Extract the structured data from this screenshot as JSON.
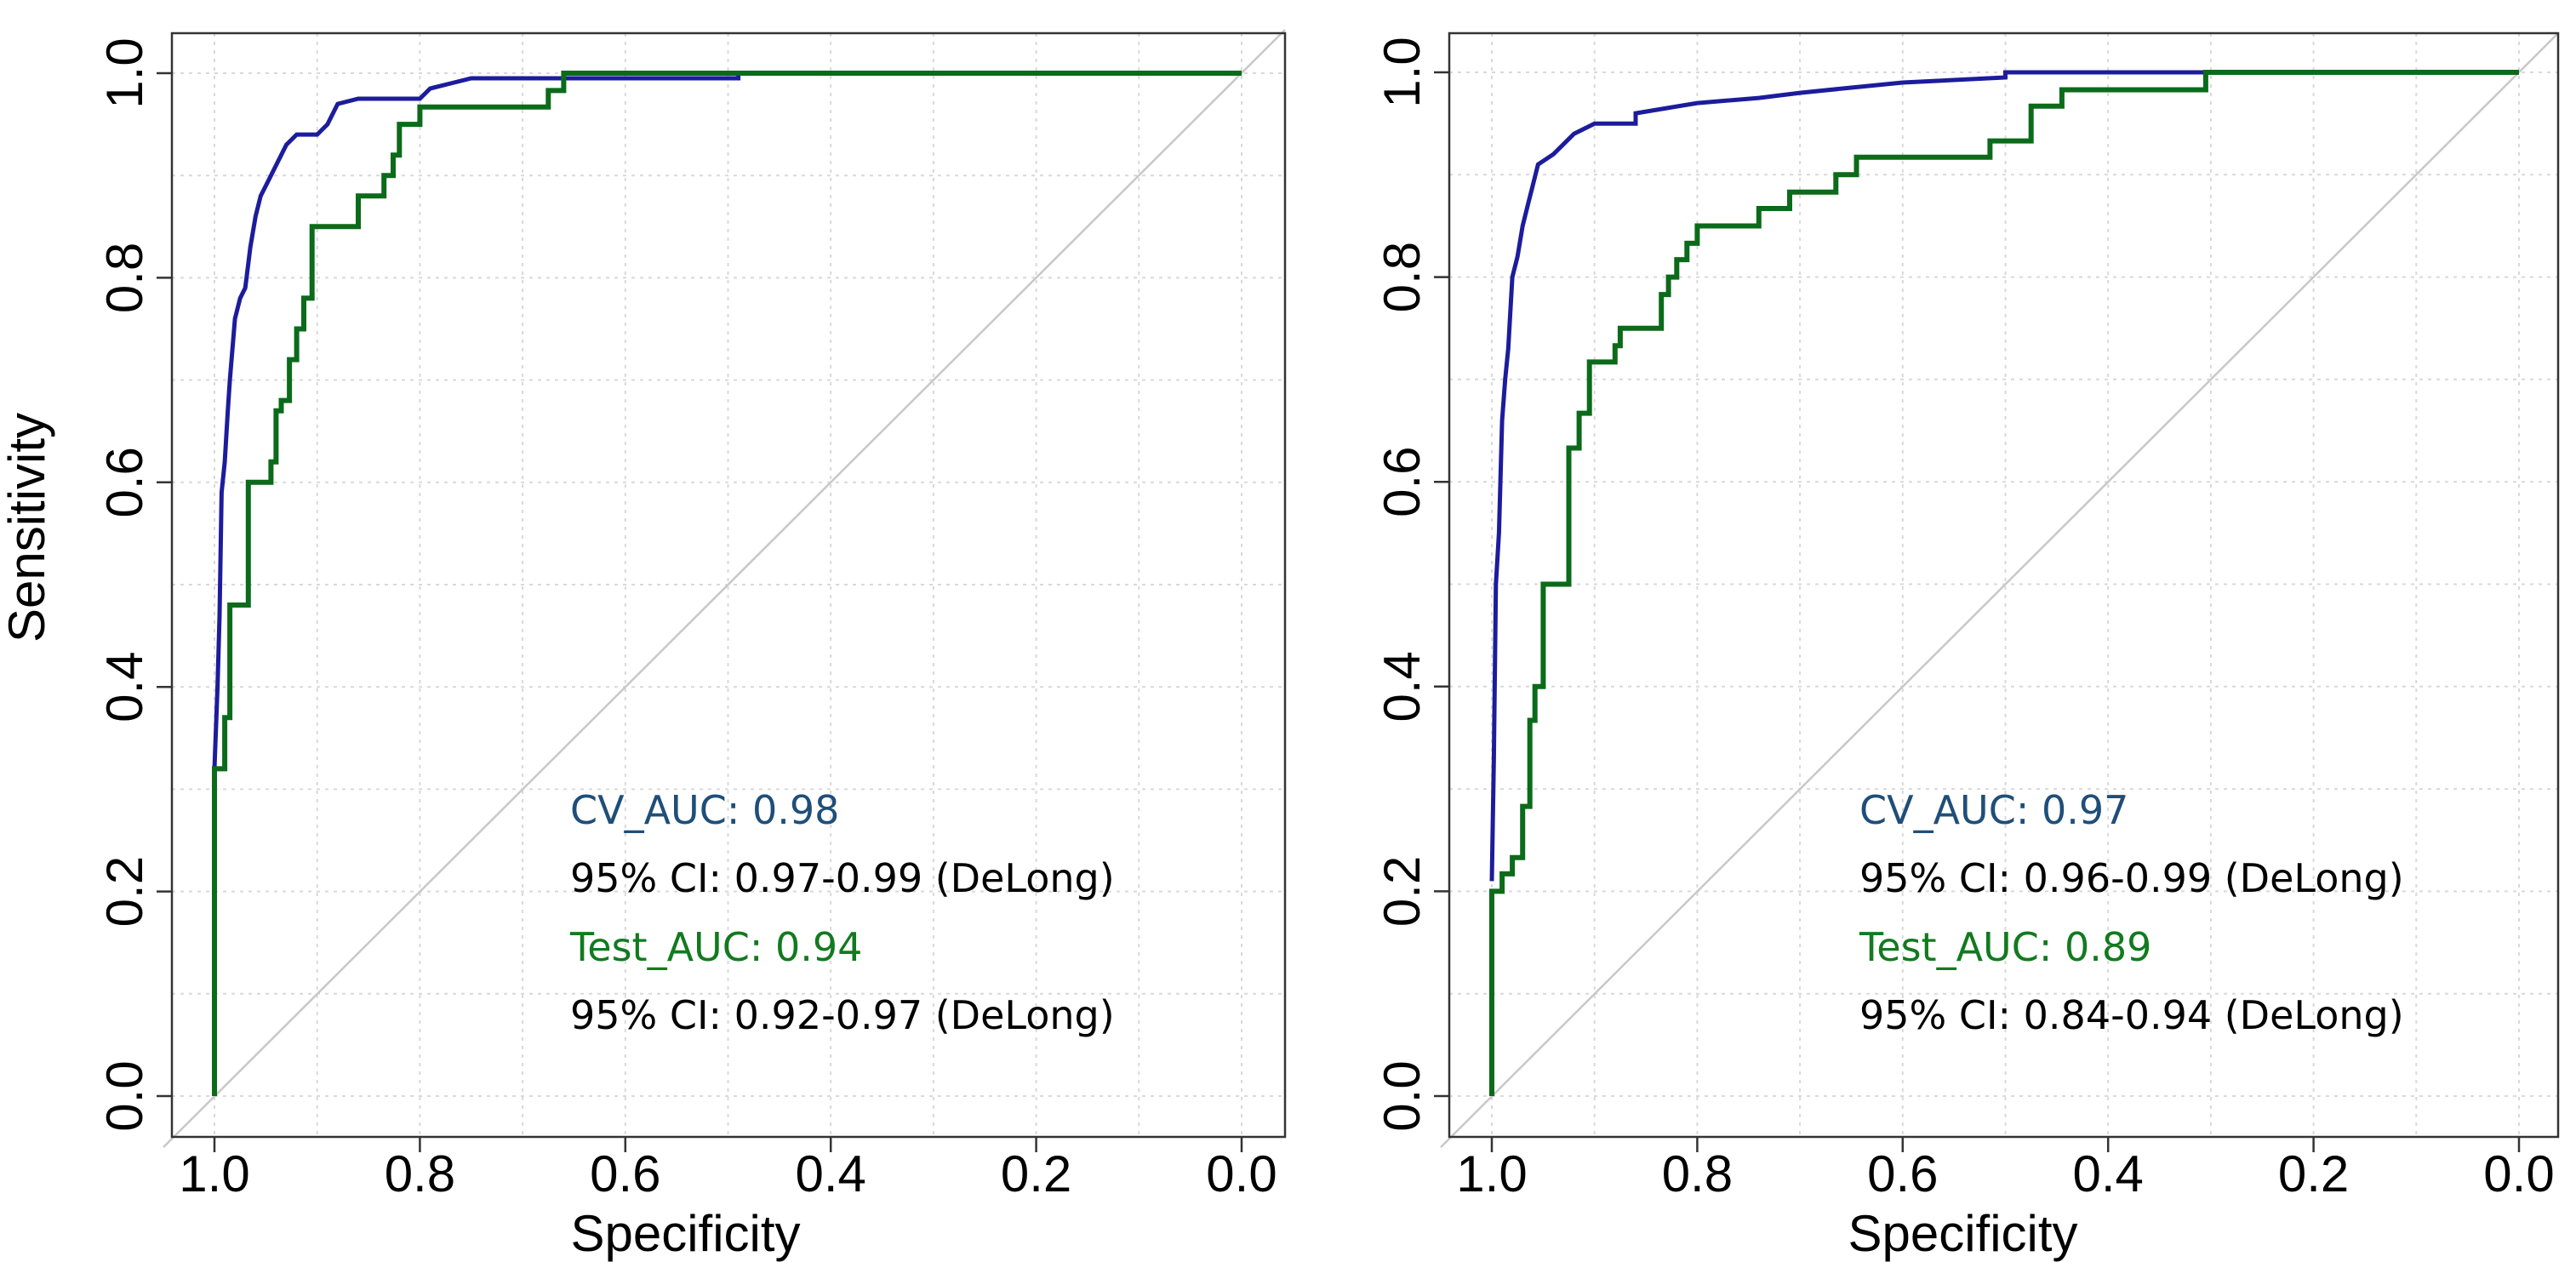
{
  "chart_data": [
    {
      "type": "line",
      "xlabel": "Specificity",
      "ylabel": "Sensitivity",
      "xlim": [
        1.0,
        0.0
      ],
      "ylim": [
        0.0,
        1.0
      ],
      "xticks": [
        "1.0",
        "0.8",
        "0.6",
        "0.4",
        "0.2",
        "0.0"
      ],
      "yticks": [
        "0.0",
        "0.2",
        "0.4",
        "0.6",
        "0.8",
        "1.0"
      ],
      "grid": true,
      "reference_line": "diagonal",
      "legend": [
        {
          "text": "CV_AUC: 0.98",
          "color": "#1f4e79"
        },
        {
          "text": "95% CI: 0.97-0.99 (DeLong)",
          "color": "#000000"
        },
        {
          "text": "Test_AUC: 0.94",
          "color": "#127a1f"
        },
        {
          "text": "95% CI: 0.92-0.97 (DeLong)",
          "color": "#000000"
        }
      ],
      "series": [
        {
          "name": "CV",
          "color": "#1c1c9c",
          "points": [
            [
              1,
              0.12
            ],
            [
              1,
              0.32
            ],
            [
              0.997,
              0.4
            ],
            [
              0.995,
              0.47
            ],
            [
              0.993,
              0.59
            ],
            [
              0.99,
              0.62
            ],
            [
              0.987,
              0.67
            ],
            [
              0.985,
              0.7
            ],
            [
              0.98,
              0.76
            ],
            [
              0.975,
              0.78
            ],
            [
              0.97,
              0.79
            ],
            [
              0.965,
              0.83
            ],
            [
              0.96,
              0.86
            ],
            [
              0.955,
              0.88
            ],
            [
              0.95,
              0.89
            ],
            [
              0.94,
              0.91
            ],
            [
              0.93,
              0.93
            ],
            [
              0.92,
              0.94
            ],
            [
              0.9,
              0.94
            ],
            [
              0.89,
              0.95
            ],
            [
              0.88,
              0.97
            ],
            [
              0.86,
              0.975
            ],
            [
              0.8,
              0.975
            ],
            [
              0.79,
              0.985
            ],
            [
              0.77,
              0.99
            ],
            [
              0.75,
              0.995
            ],
            [
              0.49,
              0.995
            ],
            [
              0.49,
              1.0
            ],
            [
              0,
              1.0
            ]
          ]
        },
        {
          "name": "Test",
          "color": "#0b6b1a",
          "points": [
            [
              1,
              0
            ],
            [
              1,
              0.32
            ],
            [
              0.99,
              0.32
            ],
            [
              0.99,
              0.37
            ],
            [
              0.985,
              0.37
            ],
            [
              0.985,
              0.48
            ],
            [
              0.967,
              0.48
            ],
            [
              0.967,
              0.6
            ],
            [
              0.945,
              0.6
            ],
            [
              0.945,
              0.62
            ],
            [
              0.94,
              0.62
            ],
            [
              0.94,
              0.67
            ],
            [
              0.935,
              0.67
            ],
            [
              0.935,
              0.68
            ],
            [
              0.927,
              0.68
            ],
            [
              0.927,
              0.72
            ],
            [
              0.92,
              0.72
            ],
            [
              0.92,
              0.75
            ],
            [
              0.913,
              0.75
            ],
            [
              0.913,
              0.78
            ],
            [
              0.905,
              0.78
            ],
            [
              0.905,
              0.85
            ],
            [
              0.86,
              0.85
            ],
            [
              0.86,
              0.88
            ],
            [
              0.835,
              0.88
            ],
            [
              0.835,
              0.9
            ],
            [
              0.826,
              0.9
            ],
            [
              0.826,
              0.92
            ],
            [
              0.82,
              0.92
            ],
            [
              0.82,
              0.95
            ],
            [
              0.8,
              0.95
            ],
            [
              0.8,
              0.967
            ],
            [
              0.675,
              0.967
            ],
            [
              0.675,
              0.983
            ],
            [
              0.66,
              0.983
            ],
            [
              0.66,
              1
            ],
            [
              0,
              1
            ]
          ]
        }
      ]
    },
    {
      "type": "line",
      "xlabel": "Specificity",
      "ylabel": "",
      "xlim": [
        1.0,
        0.0
      ],
      "ylim": [
        0.0,
        1.0
      ],
      "xticks": [
        "1.0",
        "0.8",
        "0.6",
        "0.4",
        "0.2",
        "0.0"
      ],
      "yticks": [
        "0.0",
        "0.2",
        "0.4",
        "0.6",
        "0.8",
        "1.0"
      ],
      "grid": true,
      "reference_line": "diagonal",
      "legend": [
        {
          "text": "CV_AUC: 0.97",
          "color": "#1f4e79"
        },
        {
          "text": "95% CI: 0.96-0.99 (DeLong)",
          "color": "#000000"
        },
        {
          "text": "Test_AUC: 0.89",
          "color": "#127a1f"
        },
        {
          "text": "95% CI: 0.84-0.94 (DeLong)",
          "color": "#000000"
        }
      ],
      "series": [
        {
          "name": "CV",
          "color": "#1c1c9c",
          "points": [
            [
              1,
              0.21
            ],
            [
              0.998,
              0.33
            ],
            [
              0.996,
              0.5
            ],
            [
              0.993,
              0.55
            ],
            [
              0.99,
              0.66
            ],
            [
              0.987,
              0.7
            ],
            [
              0.984,
              0.73
            ],
            [
              0.98,
              0.8
            ],
            [
              0.975,
              0.82
            ],
            [
              0.97,
              0.85
            ],
            [
              0.965,
              0.87
            ],
            [
              0.96,
              0.89
            ],
            [
              0.955,
              0.91
            ],
            [
              0.94,
              0.92
            ],
            [
              0.93,
              0.93
            ],
            [
              0.92,
              0.94
            ],
            [
              0.9,
              0.95
            ],
            [
              0.86,
              0.95
            ],
            [
              0.86,
              0.96
            ],
            [
              0.83,
              0.965
            ],
            [
              0.8,
              0.97
            ],
            [
              0.74,
              0.975
            ],
            [
              0.7,
              0.98
            ],
            [
              0.65,
              0.985
            ],
            [
              0.6,
              0.99
            ],
            [
              0.5,
              0.995
            ],
            [
              0.5,
              1
            ],
            [
              0,
              1
            ]
          ]
        },
        {
          "name": "Test",
          "color": "#0b6b1a",
          "points": [
            [
              1,
              0
            ],
            [
              1,
              0.2
            ],
            [
              0.99,
              0.2
            ],
            [
              0.99,
              0.217
            ],
            [
              0.98,
              0.217
            ],
            [
              0.98,
              0.233
            ],
            [
              0.97,
              0.233
            ],
            [
              0.97,
              0.283
            ],
            [
              0.963,
              0.283
            ],
            [
              0.963,
              0.367
            ],
            [
              0.958,
              0.367
            ],
            [
              0.958,
              0.4
            ],
            [
              0.95,
              0.4
            ],
            [
              0.95,
              0.5
            ],
            [
              0.925,
              0.5
            ],
            [
              0.925,
              0.633
            ],
            [
              0.915,
              0.633
            ],
            [
              0.915,
              0.667
            ],
            [
              0.905,
              0.667
            ],
            [
              0.905,
              0.717
            ],
            [
              0.88,
              0.717
            ],
            [
              0.88,
              0.733
            ],
            [
              0.875,
              0.733
            ],
            [
              0.875,
              0.75
            ],
            [
              0.835,
              0.75
            ],
            [
              0.835,
              0.783
            ],
            [
              0.828,
              0.783
            ],
            [
              0.828,
              0.8
            ],
            [
              0.82,
              0.8
            ],
            [
              0.82,
              0.817
            ],
            [
              0.81,
              0.817
            ],
            [
              0.81,
              0.833
            ],
            [
              0.8,
              0.833
            ],
            [
              0.8,
              0.85
            ],
            [
              0.74,
              0.85
            ],
            [
              0.74,
              0.867
            ],
            [
              0.71,
              0.867
            ],
            [
              0.71,
              0.883
            ],
            [
              0.665,
              0.883
            ],
            [
              0.665,
              0.9
            ],
            [
              0.645,
              0.9
            ],
            [
              0.645,
              0.917
            ],
            [
              0.515,
              0.917
            ],
            [
              0.515,
              0.933
            ],
            [
              0.475,
              0.933
            ],
            [
              0.475,
              0.967
            ],
            [
              0.445,
              0.967
            ],
            [
              0.445,
              0.983
            ],
            [
              0.305,
              0.983
            ],
            [
              0.305,
              1
            ],
            [
              0,
              1
            ]
          ]
        }
      ]
    }
  ]
}
